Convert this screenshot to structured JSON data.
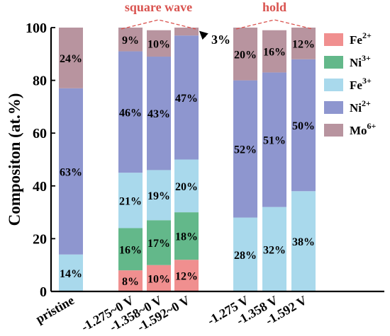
{
  "chart_data": {
    "type": "bar",
    "stacked": true,
    "ylabel": "Compositon (at.%)",
    "ylim": [
      0,
      100
    ],
    "yticks": [
      0,
      20,
      40,
      60,
      80,
      100
    ],
    "categories": [
      "pristine",
      "-1.275~0 V",
      "-1.358~0 V",
      "-1.592~0 V",
      "-1.275 V",
      "-1.358 V",
      "-1.592 V"
    ],
    "series": [
      {
        "name": "Fe2+",
        "base": "Fe",
        "charge": "2+",
        "color": "#f08f8f",
        "values": [
          0,
          8,
          10,
          12,
          0,
          0,
          0
        ],
        "labels": [
          "",
          "8%",
          "10%",
          "12%",
          "",
          "",
          ""
        ]
      },
      {
        "name": "Ni3+",
        "base": "Ni",
        "charge": "3+",
        "color": "#63b88a",
        "values": [
          0,
          16,
          17,
          18,
          0,
          0,
          0
        ],
        "labels": [
          "",
          "16%",
          "17%",
          "18%",
          "",
          "",
          ""
        ]
      },
      {
        "name": "Fe3+",
        "base": "Fe",
        "charge": "3+",
        "color": "#a9d9ec",
        "values": [
          14,
          21,
          19,
          20,
          28,
          32,
          38
        ],
        "labels": [
          "14%",
          "21%",
          "19%",
          "20%",
          "28%",
          "32%",
          "38%"
        ]
      },
      {
        "name": "Ni2+",
        "base": "Ni",
        "charge": "2+",
        "color": "#8e96cf",
        "values": [
          63,
          46,
          43,
          47,
          52,
          51,
          50
        ],
        "labels": [
          "63%",
          "46%",
          "43%",
          "47%",
          "52%",
          "51%",
          "50%"
        ]
      },
      {
        "name": "Mo6+",
        "base": "Mo",
        "charge": "6+",
        "color": "#b8949f",
        "values": [
          24,
          9,
          10,
          3,
          20,
          16,
          12
        ],
        "labels": [
          "24%",
          "9%",
          "10%",
          "",
          "20%",
          "16%",
          "12%"
        ]
      }
    ],
    "annotations": [
      {
        "text": "3%",
        "target_category": "-1.592~0 V",
        "target_series": "Mo6+"
      }
    ],
    "groups": [
      {
        "label": "square wave",
        "categories": [
          "-1.275~0 V",
          "-1.358~0 V",
          "-1.592~0 V"
        ],
        "color": "#d9534f"
      },
      {
        "label": "hold",
        "categories": [
          "-1.275 V",
          "-1.358 V",
          "-1.592 V"
        ],
        "color": "#d9534f"
      }
    ],
    "legend_position": "top-right"
  }
}
